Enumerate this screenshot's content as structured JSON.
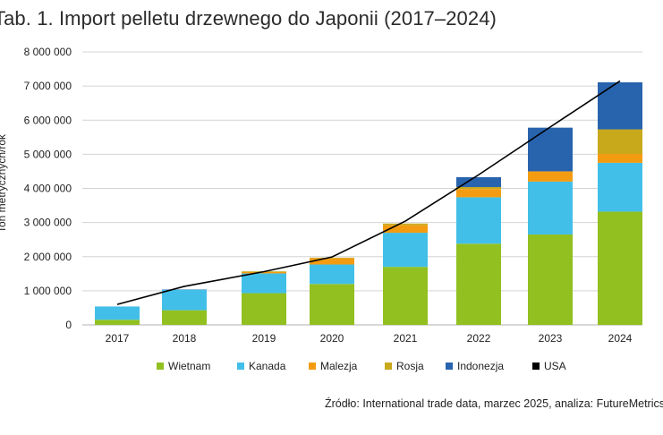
{
  "page": {
    "title": "Tab. 1. Import pelletu drzewnego do Japonii (2017–2024)",
    "source": "Źródło: International trade data, marzec 2025, analiza: FutureMetrics"
  },
  "chart_data": {
    "type": "bar",
    "stacked": true,
    "title": "Tab. 1. Import pelletu drzewnego do Japonii (2017–2024)",
    "ylabel": "Ton metrycznych/rok",
    "xlabel": "",
    "ylim": [
      0,
      8000000
    ],
    "yticks": [
      0,
      1000000,
      2000000,
      3000000,
      4000000,
      5000000,
      6000000,
      7000000,
      8000000
    ],
    "ytick_labels": [
      "0",
      "1 000 000",
      "2 000 000",
      "3 000 000",
      "4 000 000",
      "5 000 000",
      "6 000 000",
      "7 000 000",
      "8 000 000"
    ],
    "categories": [
      "2017",
      "2018",
      "2019",
      "2020",
      "2021",
      "2022",
      "2023",
      "2024"
    ],
    "grid": true,
    "legend_position": "bottom",
    "series": [
      {
        "name": "Wietnam",
        "color": "#92c020",
        "values": [
          150000,
          430000,
          930000,
          1200000,
          1700000,
          2380000,
          2650000,
          3320000
        ]
      },
      {
        "name": "Kanada",
        "color": "#42bfe8",
        "values": [
          390000,
          600000,
          580000,
          570000,
          1000000,
          1360000,
          1550000,
          1430000
        ]
      },
      {
        "name": "Malezja",
        "color": "#f39c12",
        "values": [
          0,
          0,
          40000,
          180000,
          220000,
          240000,
          300000,
          260000
        ]
      },
      {
        "name": "Rosja",
        "color": "#c9a91c",
        "values": [
          0,
          0,
          20000,
          20000,
          50000,
          60000,
          0,
          720000
        ]
      },
      {
        "name": "Indonezja",
        "color": "#2863ae",
        "values": [
          0,
          10000,
          0,
          0,
          0,
          290000,
          1280000,
          1380000
        ]
      },
      {
        "name": "USA",
        "color": "#000000",
        "type": "line",
        "values": [
          600000,
          1130000,
          1560000,
          1990000,
          3040000,
          4400000,
          5800000,
          7150000
        ]
      }
    ]
  }
}
